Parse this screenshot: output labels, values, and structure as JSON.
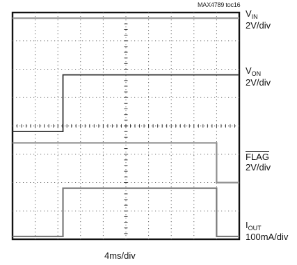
{
  "part_tag": "MAX4789 toc16",
  "chart_data": {
    "type": "line",
    "title": "",
    "xlabel": "4ms/div",
    "x_divisions": 10,
    "y_divisions": 8,
    "grid": true,
    "x_unit": "ms",
    "ms_per_div": 4,
    "xlim": [
      0,
      40
    ],
    "series": [
      {
        "name": "VIN",
        "label_main": "V",
        "label_sub": "IN",
        "scale": "2V/div",
        "unit": "div",
        "color": "#9a9a9a",
        "x": [
          0,
          40
        ],
        "y": [
          7.8,
          7.8
        ]
      },
      {
        "name": "VON",
        "label_main": "V",
        "label_sub": "ON",
        "scale": "2V/div",
        "unit": "div",
        "color": "#333333",
        "x": [
          0,
          8.9,
          8.9,
          40
        ],
        "y": [
          3.8,
          3.8,
          5.8,
          5.8
        ]
      },
      {
        "name": "FLAG",
        "label_main": "FLAG",
        "label_sub": "",
        "scale": "2V/div",
        "unit": "div",
        "color": "#8f8f8f",
        "x": [
          0,
          36.0,
          36.0,
          40
        ],
        "y": [
          3.4,
          3.4,
          2.0,
          2.0
        ]
      },
      {
        "name": "IOUT",
        "label_main": "I",
        "label_sub": "OUT",
        "scale": "100mA/div",
        "unit": "div",
        "color": "#7a7a7a",
        "x": [
          0,
          8.9,
          8.9,
          36.0,
          36.0,
          40
        ],
        "y": [
          0.1,
          0.1,
          1.8,
          1.8,
          0.1,
          0.1
        ]
      }
    ]
  }
}
